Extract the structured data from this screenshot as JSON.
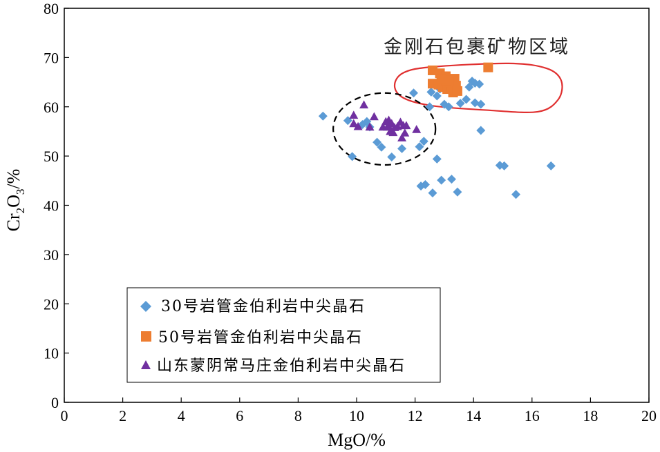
{
  "chart_data": {
    "type": "scatter",
    "title": "",
    "xlabel": "MgO/%",
    "ylabel": {
      "base": "Cr",
      "sub1": "2",
      "mid": "O",
      "sub2": "3",
      "unit": "/%"
    },
    "xlim": [
      0,
      20
    ],
    "ylim": [
      0,
      80
    ],
    "x_ticks": [
      0,
      2,
      4,
      6,
      8,
      10,
      12,
      14,
      16,
      18,
      20
    ],
    "y_ticks": [
      0,
      10,
      20,
      30,
      40,
      50,
      60,
      70,
      80
    ],
    "legend_position": "bottom-left",
    "annotation": "金刚石包裹矿物区域",
    "colors": {
      "series1": "#5b9bd5",
      "series2": "#ed7d31",
      "series3": "#7030a0",
      "inclusion_region": "#e03030",
      "dashed_region": "#000000"
    },
    "regions": [
      {
        "name": "diamond-inclusion-field",
        "style": "solid",
        "color": "#e03030",
        "path": [
          [
            11.6,
            61.8
          ],
          [
            11.3,
            64.3
          ],
          [
            11.6,
            66.9
          ],
          [
            12.6,
            68.1
          ],
          [
            15.2,
            68.8
          ],
          [
            16.5,
            67.8
          ],
          [
            17.0,
            65.3
          ],
          [
            16.9,
            61.5
          ],
          [
            16.2,
            59.0
          ],
          [
            14.5,
            59.3
          ],
          [
            12.6,
            60.2
          ],
          [
            11.6,
            61.8
          ]
        ]
      },
      {
        "name": "shandong-field",
        "style": "dashed",
        "color": "#000000",
        "ellipse": {
          "cx": 10.95,
          "cy": 55.5,
          "rx": 1.75,
          "ry": 7.3
        }
      }
    ],
    "series": [
      {
        "name": "30号岩管金伯利岩中尖晶石",
        "marker": "diamond",
        "color": "#5b9bd5",
        "points": [
          [
            8.85,
            58.1
          ],
          [
            9.7,
            57.2
          ],
          [
            9.85,
            49.9
          ],
          [
            10.2,
            56.4
          ],
          [
            10.35,
            57.0
          ],
          [
            10.45,
            55.9
          ],
          [
            10.7,
            52.8
          ],
          [
            10.85,
            51.8
          ],
          [
            11.2,
            49.8
          ],
          [
            11.55,
            51.5
          ],
          [
            11.95,
            62.8
          ],
          [
            12.15,
            51.9
          ],
          [
            12.3,
            53.0
          ],
          [
            12.5,
            60.0
          ],
          [
            12.2,
            43.9
          ],
          [
            12.35,
            44.2
          ],
          [
            12.6,
            42.5
          ],
          [
            12.75,
            49.4
          ],
          [
            12.9,
            45.1
          ],
          [
            12.55,
            63.0
          ],
          [
            12.75,
            62.2
          ],
          [
            12.85,
            63.6
          ],
          [
            13.0,
            60.5
          ],
          [
            13.15,
            60.0
          ],
          [
            13.25,
            45.3
          ],
          [
            13.45,
            42.7
          ],
          [
            13.55,
            60.7
          ],
          [
            13.75,
            61.5
          ],
          [
            13.85,
            64.0
          ],
          [
            13.95,
            65.2
          ],
          [
            14.05,
            64.8
          ],
          [
            14.05,
            60.8
          ],
          [
            14.2,
            64.6
          ],
          [
            14.25,
            60.5
          ],
          [
            14.25,
            55.2
          ],
          [
            14.9,
            48.1
          ],
          [
            15.05,
            48.0
          ],
          [
            15.45,
            42.2
          ],
          [
            16.65,
            48.0
          ]
        ]
      },
      {
        "name": "50号岩管金伯利岩中尖晶石",
        "marker": "square",
        "color": "#ed7d31",
        "points": [
          [
            12.6,
            67.4
          ],
          [
            12.85,
            66.8
          ],
          [
            13.05,
            66.2
          ],
          [
            13.2,
            65.3
          ],
          [
            13.35,
            65.7
          ],
          [
            12.6,
            64.7
          ],
          [
            12.8,
            64.5
          ],
          [
            12.95,
            64.0
          ],
          [
            13.1,
            63.6
          ],
          [
            13.25,
            63.9
          ],
          [
            13.4,
            64.3
          ],
          [
            13.15,
            65.0
          ],
          [
            13.05,
            65.3
          ],
          [
            12.9,
            65.6
          ],
          [
            13.3,
            62.9
          ],
          [
            13.45,
            63.2
          ],
          [
            14.5,
            68.0
          ]
        ]
      },
      {
        "name": "山东蒙阴常马庄金伯利岩中尖晶石",
        "marker": "triangle",
        "color": "#7030a0",
        "points": [
          [
            10.25,
            60.4
          ],
          [
            9.9,
            58.3
          ],
          [
            9.9,
            56.6
          ],
          [
            10.05,
            56.0
          ],
          [
            10.45,
            55.9
          ],
          [
            10.6,
            58.0
          ],
          [
            10.9,
            55.9
          ],
          [
            11.0,
            57.0
          ],
          [
            11.05,
            55.9
          ],
          [
            11.1,
            57.3
          ],
          [
            11.1,
            56.0
          ],
          [
            11.15,
            55.0
          ],
          [
            11.2,
            56.6
          ],
          [
            11.25,
            54.8
          ],
          [
            11.3,
            55.8
          ],
          [
            11.4,
            56.0
          ],
          [
            11.5,
            56.9
          ],
          [
            11.55,
            53.7
          ],
          [
            11.6,
            56.2
          ],
          [
            11.7,
            56.2
          ],
          [
            11.65,
            54.7
          ],
          [
            12.05,
            55.4
          ]
        ]
      }
    ]
  }
}
